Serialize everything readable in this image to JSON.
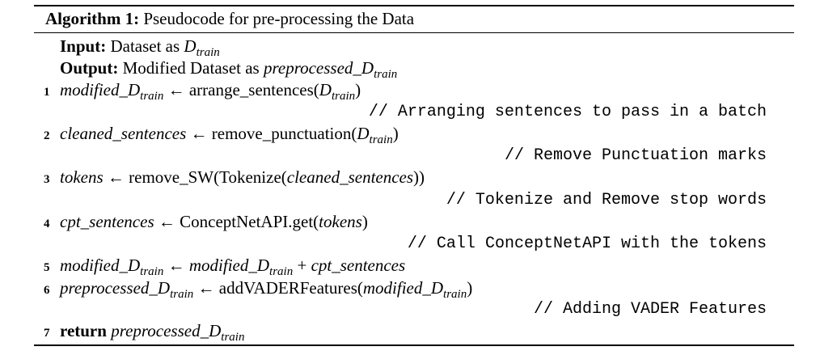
{
  "algorithm": {
    "label": "Algorithm 1:",
    "title": "Pseudocode for pre-processing the Data",
    "input_label": "Input:",
    "input_text": "Dataset as ",
    "output_label": "Output:",
    "output_text": "Modified Dataset as ",
    "D": "D",
    "train": "train",
    "arrow": " ← ",
    "plus": " + ",
    "steps": {
      "s1": {
        "num": "1",
        "var": "modified_",
        "func": "arrange_sentences(",
        "close": ")",
        "comment": "// Arranging sentences to pass in a batch"
      },
      "s2": {
        "num": "2",
        "var": "cleaned_sentences",
        "func": "remove_punctuation(",
        "close": ")",
        "comment": "// Remove Punctuation marks"
      },
      "s3": {
        "num": "3",
        "var": "tokens",
        "func": "remove_SW(Tokenize(",
        "arg": "cleaned_sentences",
        "close": "))",
        "comment": "// Tokenize and Remove stop words"
      },
      "s4": {
        "num": "4",
        "var": "cpt_sentences",
        "func": "ConceptNetAPI.get(",
        "arg": "tokens",
        "close": ")",
        "comment": "// Call ConceptNetAPI with the tokens"
      },
      "s5": {
        "num": "5",
        "var": "modified_",
        "var2": "modified_",
        "arg": "cpt_sentences"
      },
      "s6": {
        "num": "6",
        "var": "preprocessed_",
        "func": "addVADERFeatures(",
        "arg": "modified_",
        "close": ")",
        "comment": "// Adding VADER Features"
      },
      "s7": {
        "num": "7",
        "keyword": "return",
        "var": "preprocessed_"
      }
    }
  }
}
